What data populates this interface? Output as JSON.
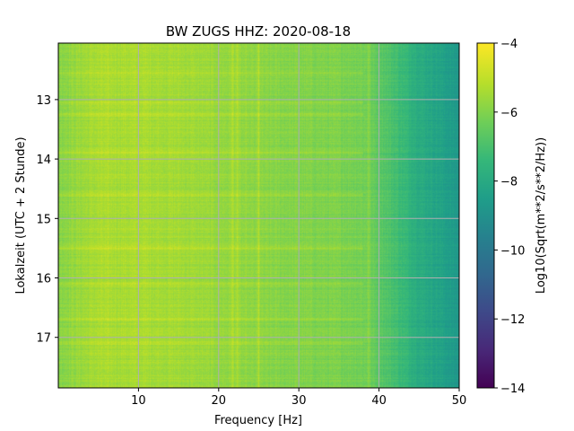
{
  "chart_data": {
    "type": "heatmap",
    "title": "BW ZUGS  HHZ: 2020-08-18",
    "xlabel": "Frequency [Hz]",
    "ylabel": "Lokalzeit (UTC + 2 Stunde)",
    "xlim": [
      0,
      50
    ],
    "ylim": [
      12.05,
      17.85
    ],
    "y_inverted": true,
    "x_ticks": [
      10,
      20,
      30,
      40,
      50
    ],
    "y_ticks": [
      13,
      14,
      15,
      16,
      17
    ],
    "grid": true,
    "colormap": "viridis",
    "colorbar": {
      "label": "Log10(Sqrt(m**2/s**2/Hz))",
      "range": [
        -14,
        -4
      ],
      "ticks": [
        -4,
        -6,
        -8,
        -10,
        -12,
        -14
      ]
    },
    "spectral_profile": {
      "frequency_hz": [
        0,
        5,
        10,
        15,
        20,
        25,
        30,
        35,
        38,
        40,
        42,
        45,
        48,
        50
      ],
      "log10_amplitude": [
        -5.8,
        -5.3,
        -5.3,
        -5.4,
        -5.6,
        -5.8,
        -5.9,
        -6.0,
        -6.1,
        -6.5,
        -7.0,
        -7.8,
        -8.3,
        -8.7
      ]
    },
    "notable_features": {
      "vertical_lines_hz": [
        21.7,
        22.3,
        25.0,
        38.7
      ],
      "horizontal_bands_local_time": [
        12.55,
        13.05,
        13.25,
        13.9,
        14.6,
        15.5,
        16.1,
        16.7,
        17.1
      ]
    }
  }
}
